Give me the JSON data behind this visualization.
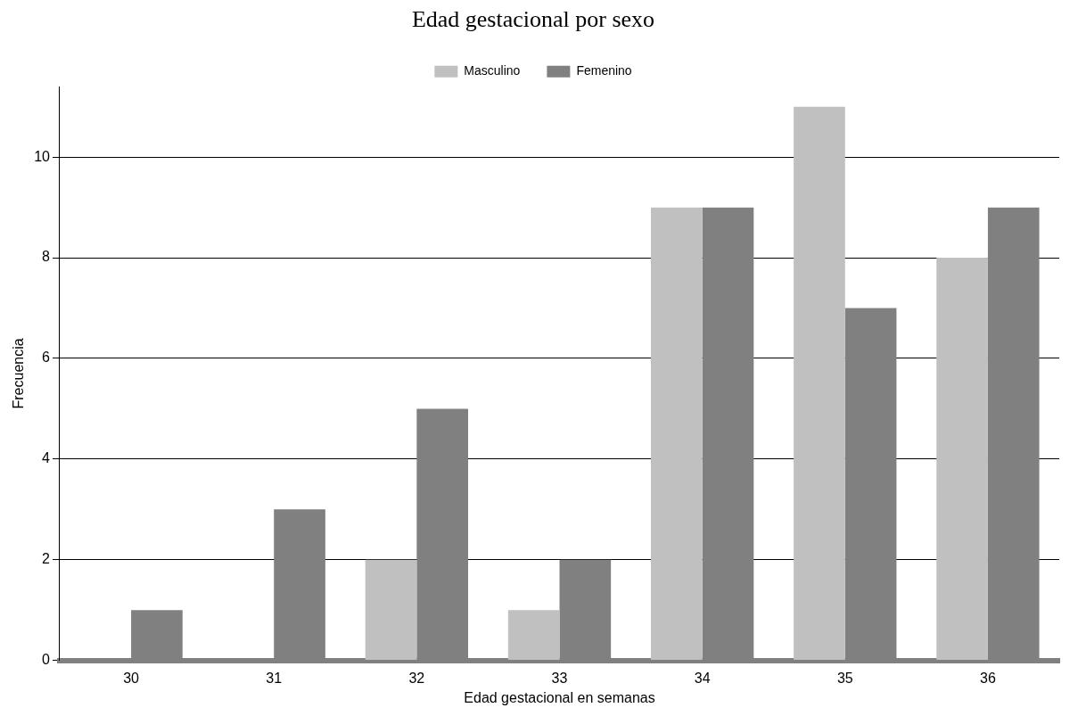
{
  "chart_data": {
    "type": "bar",
    "title": "Edad gestacional por sexo",
    "xlabel": "Edad gestacional en semanas",
    "ylabel": "Frecuencia",
    "categories": [
      "30",
      "31",
      "32",
      "33",
      "34",
      "35",
      "36"
    ],
    "series": [
      {
        "name": "Masculino",
        "color": "#c0c0c0",
        "values": [
          0,
          0,
          2,
          1,
          9,
          11,
          8
        ]
      },
      {
        "name": "Femenino",
        "color": "#808080",
        "values": [
          1,
          3,
          5,
          2,
          9,
          7,
          9
        ]
      }
    ],
    "ylim": [
      0,
      11.4
    ],
    "yticks": [
      0,
      2,
      4,
      6,
      8,
      10
    ],
    "grid": "y",
    "legend": "top"
  }
}
